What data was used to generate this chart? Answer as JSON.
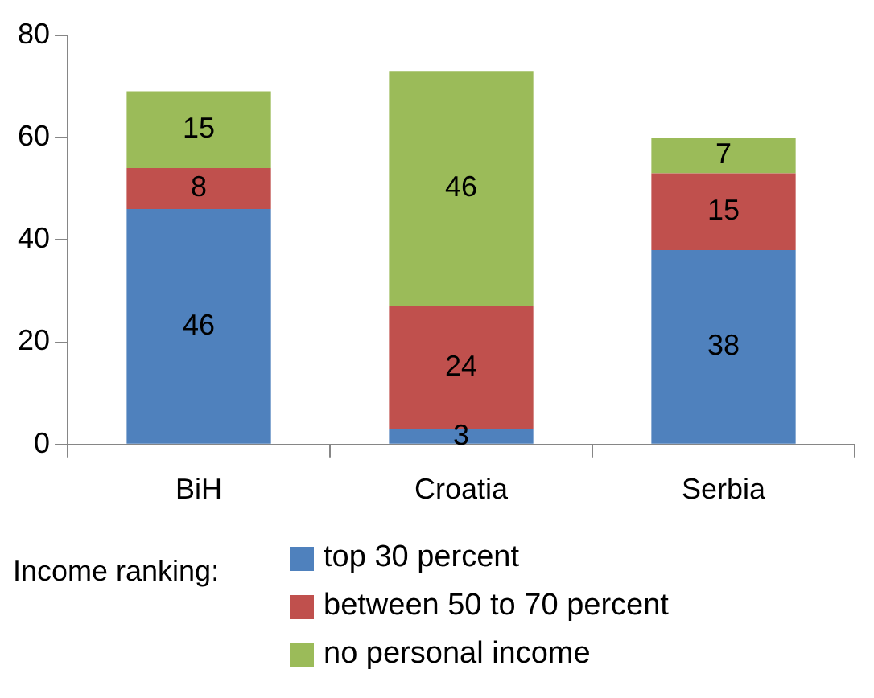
{
  "chart_data": {
    "type": "bar",
    "stacked": true,
    "categories": [
      "BiH",
      "Croatia",
      "Serbia"
    ],
    "series": [
      {
        "name": "top 30 percent",
        "color": "#4f81bd",
        "values": [
          46,
          3,
          38
        ]
      },
      {
        "name": "between 50 to 70 percent",
        "color": "#c0504d",
        "values": [
          8,
          24,
          15
        ]
      },
      {
        "name": "no personal income",
        "color": "#9bbb59",
        "values": [
          15,
          46,
          7
        ]
      }
    ],
    "ylim": [
      0,
      80
    ],
    "yticks": [
      0,
      20,
      40,
      60,
      80
    ],
    "data_labels": true,
    "legend": "bottom",
    "legend_title": "Income ranking:"
  }
}
